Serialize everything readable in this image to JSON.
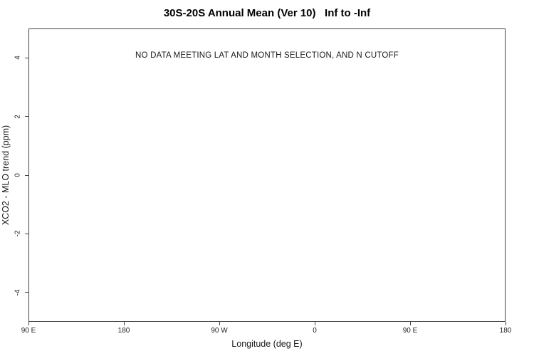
{
  "chart_data": {
    "type": "scatter",
    "title": "30S-20S Annual Mean (Ver 10)   Inf to -Inf",
    "annotation": "NO DATA MEETING LAT AND MONTH SELECTION, AND N CUTOFF",
    "xlabel": "Longitude (deg E)",
    "ylabel": "XCO2 - MLO trend (ppm)",
    "series": [],
    "x_tick_labels": [
      "90 E",
      "180",
      "90 W",
      "0",
      "90 E",
      "180"
    ],
    "y_tick_values": [
      4,
      2,
      0,
      -2,
      -4
    ],
    "ylim": [
      -5,
      5
    ],
    "grid": false,
    "legend": false,
    "colors": {
      "axis": "#454545",
      "text": "#1a1a1a",
      "title": "#000000",
      "background": "#ffffff"
    }
  }
}
